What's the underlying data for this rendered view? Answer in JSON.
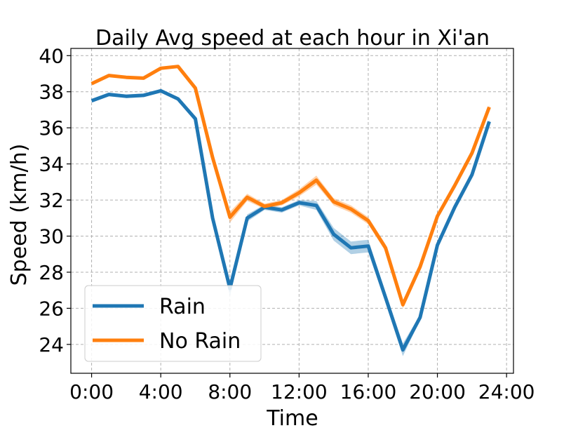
{
  "chart_data": {
    "type": "line",
    "title": "Daily Avg speed at each hour in Xi'an",
    "xlabel": "Time",
    "ylabel": "Speed (km/h)",
    "x": [
      0,
      1,
      2,
      3,
      4,
      5,
      6,
      7,
      8,
      9,
      10,
      11,
      12,
      13,
      14,
      15,
      16,
      17,
      18,
      19,
      20,
      21,
      22,
      23
    ],
    "xlim": [
      -1.2,
      24.4
    ],
    "ylim": [
      22.4,
      40.4
    ],
    "xticks": [
      0,
      4,
      8,
      12,
      16,
      20,
      24
    ],
    "xtick_labels": [
      "0:00",
      "4:00",
      "8:00",
      "12:00",
      "16:00",
      "20:00",
      "24:00"
    ],
    "yticks": [
      24,
      26,
      28,
      30,
      32,
      34,
      36,
      38,
      40
    ],
    "ytick_labels": [
      "24",
      "26",
      "28",
      "30",
      "32",
      "34",
      "36",
      "38",
      "40"
    ],
    "grid": true,
    "legend_position": "lower-left",
    "series": [
      {
        "name": "Rain",
        "color": "#1f77b4",
        "values": [
          37.5,
          37.85,
          37.75,
          37.8,
          38.05,
          37.6,
          36.5,
          31.0,
          27.1,
          31.0,
          31.6,
          31.45,
          31.85,
          31.7,
          30.1,
          29.35,
          29.45,
          26.6,
          23.7,
          25.5,
          29.5,
          31.6,
          33.4,
          36.35
        ],
        "band": [
          0.1,
          0.1,
          0.1,
          0.1,
          0.1,
          0.1,
          0.1,
          0.15,
          0.45,
          0.2,
          0.15,
          0.15,
          0.15,
          0.25,
          0.35,
          0.35,
          0.35,
          0.3,
          0.35,
          0.15,
          0.1,
          0.1,
          0.1,
          0.1
        ]
      },
      {
        "name": "No Rain",
        "color": "#ff7f0e",
        "values": [
          38.45,
          38.9,
          38.8,
          38.75,
          39.3,
          39.4,
          38.2,
          34.35,
          31.05,
          32.15,
          31.65,
          31.85,
          32.4,
          33.1,
          31.9,
          31.5,
          30.85,
          29.35,
          26.2,
          28.3,
          31.1,
          32.8,
          34.6,
          37.15
        ],
        "band": [
          0.05,
          0.05,
          0.05,
          0.05,
          0.05,
          0.05,
          0.1,
          0.15,
          0.3,
          0.2,
          0.15,
          0.15,
          0.2,
          0.25,
          0.2,
          0.2,
          0.2,
          0.2,
          0.2,
          0.1,
          0.1,
          0.1,
          0.1,
          0.1
        ]
      }
    ]
  }
}
